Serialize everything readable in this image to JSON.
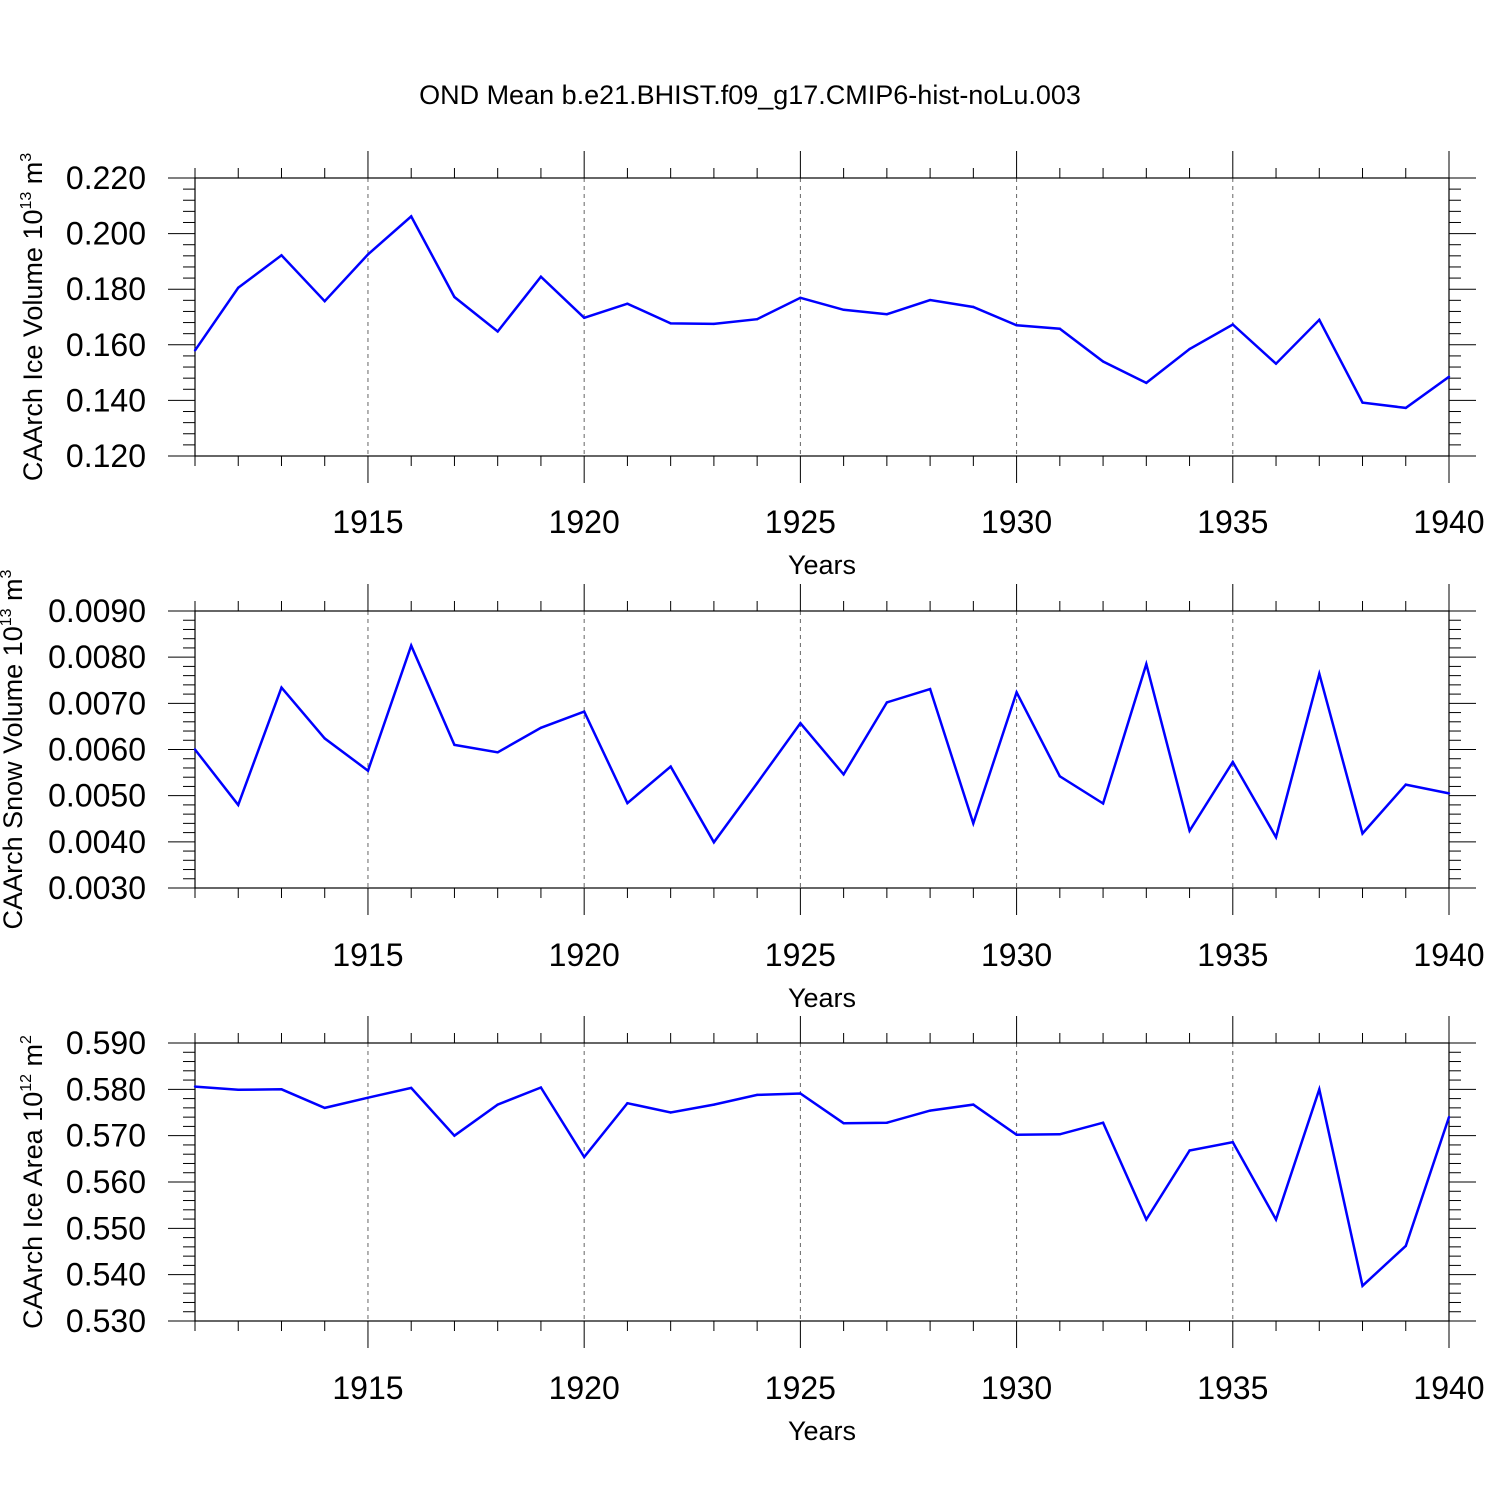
{
  "title": "OND Mean b.e21.BHIST.f09_g17.CMIP6-hist-noLu.003",
  "colors": {
    "series": "#0000ff",
    "axis": "#000000",
    "grid": "#666666"
  },
  "chart_data": [
    {
      "type": "line",
      "name": "ice-volume",
      "ylabel": {
        "text": "CAArch Ice Volume 10",
        "exponent": "13",
        "unit": " m",
        "unit_exponent": "3"
      },
      "xlabel": "Years",
      "xlim": [
        1911,
        1940
      ],
      "ylim": [
        0.12,
        0.22
      ],
      "xticks": [
        1915,
        1920,
        1925,
        1930,
        1935,
        1940
      ],
      "xtick_labels": [
        "1915",
        "1920",
        "1925",
        "1930",
        "1935",
        "1940"
      ],
      "yticks": [
        0.12,
        0.14,
        0.16,
        0.18,
        0.2,
        0.22
      ],
      "ytick_labels": [
        "0.120",
        "0.140",
        "0.160",
        "0.180",
        "0.200",
        "0.220"
      ],
      "grid": "vertical-dashed",
      "x": [
        1911,
        1912,
        1913,
        1914,
        1915,
        1916,
        1917,
        1918,
        1919,
        1920,
        1921,
        1922,
        1923,
        1924,
        1925,
        1926,
        1927,
        1928,
        1929,
        1930,
        1931,
        1932,
        1933,
        1934,
        1935,
        1936,
        1937,
        1938,
        1939,
        1940
      ],
      "values": [
        0.158,
        0.1805,
        0.1922,
        0.1757,
        0.1925,
        0.2062,
        0.1772,
        0.1648,
        0.1845,
        0.1697,
        0.1748,
        0.1677,
        0.1675,
        0.1692,
        0.1769,
        0.1726,
        0.171,
        0.1761,
        0.1736,
        0.167,
        0.1658,
        0.154,
        0.1463,
        0.1585,
        0.1673,
        0.1532,
        0.169,
        0.1392,
        0.1373,
        0.1485
      ]
    },
    {
      "type": "line",
      "name": "snow-volume",
      "ylabel": {
        "text": "CAArch Snow Volume 10",
        "exponent": "13",
        "unit": " m",
        "unit_exponent": "3"
      },
      "xlabel": "Years",
      "xlim": [
        1911,
        1940
      ],
      "ylim": [
        0.003,
        0.009
      ],
      "xticks": [
        1915,
        1920,
        1925,
        1930,
        1935,
        1940
      ],
      "xtick_labels": [
        "1915",
        "1920",
        "1925",
        "1930",
        "1935",
        "1940"
      ],
      "yticks": [
        0.003,
        0.004,
        0.005,
        0.006,
        0.007,
        0.008,
        0.009
      ],
      "ytick_labels": [
        "0.0030",
        "0.0040",
        "0.0050",
        "0.0060",
        "0.0070",
        "0.0080",
        "0.0090"
      ],
      "grid": "vertical-dashed",
      "x": [
        1911,
        1912,
        1913,
        1914,
        1915,
        1916,
        1917,
        1918,
        1919,
        1920,
        1921,
        1922,
        1923,
        1924,
        1925,
        1926,
        1927,
        1928,
        1929,
        1930,
        1931,
        1932,
        1933,
        1934,
        1935,
        1936,
        1937,
        1938,
        1939,
        1940
      ],
      "values": [
        0.006,
        0.0048,
        0.00734,
        0.00624,
        0.00554,
        0.00825,
        0.0061,
        0.00594,
        0.00647,
        0.00682,
        0.00484,
        0.00563,
        0.00399,
        0.00527,
        0.00657,
        0.00546,
        0.00702,
        0.00731,
        0.0044,
        0.00724,
        0.00542,
        0.00483,
        0.00785,
        0.00424,
        0.00573,
        0.0041,
        0.00764,
        0.00418,
        0.00524,
        0.00505
      ]
    },
    {
      "type": "line",
      "name": "ice-area",
      "ylabel": {
        "text": "CAArch Ice Area 10",
        "exponent": "12",
        "unit": " m",
        "unit_exponent": "2"
      },
      "xlabel": "Years",
      "xlim": [
        1911,
        1940
      ],
      "ylim": [
        0.53,
        0.59
      ],
      "xticks": [
        1915,
        1920,
        1925,
        1930,
        1935,
        1940
      ],
      "xtick_labels": [
        "1915",
        "1920",
        "1925",
        "1930",
        "1935",
        "1940"
      ],
      "yticks": [
        0.53,
        0.54,
        0.55,
        0.56,
        0.57,
        0.58,
        0.59
      ],
      "ytick_labels": [
        "0.530",
        "0.540",
        "0.550",
        "0.560",
        "0.570",
        "0.580",
        "0.590"
      ],
      "grid": "vertical-dashed",
      "x": [
        1911,
        1912,
        1913,
        1914,
        1915,
        1916,
        1917,
        1918,
        1919,
        1920,
        1921,
        1922,
        1923,
        1924,
        1925,
        1926,
        1927,
        1928,
        1929,
        1930,
        1931,
        1932,
        1933,
        1934,
        1935,
        1936,
        1937,
        1938,
        1939,
        1940
      ],
      "values": [
        0.5806,
        0.5799,
        0.58,
        0.576,
        0.5782,
        0.5803,
        0.57,
        0.5767,
        0.5804,
        0.5654,
        0.577,
        0.575,
        0.5767,
        0.5788,
        0.5791,
        0.5727,
        0.5728,
        0.5754,
        0.5767,
        0.5702,
        0.5703,
        0.5728,
        0.5519,
        0.5668,
        0.5686,
        0.5519,
        0.58,
        0.5376,
        0.5462,
        0.574
      ]
    }
  ]
}
